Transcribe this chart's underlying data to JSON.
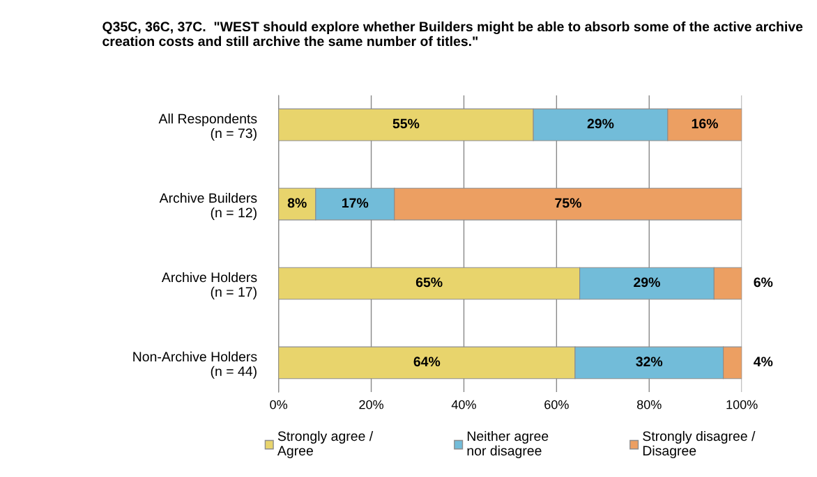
{
  "chart_data": {
    "type": "bar",
    "orientation": "horizontal",
    "stacked": true,
    "title": "Q35C, 36C, 37C.  \"WEST should explore whether Builders might be able to absorb some of the active archive creation costs and still archive the same number of titles.\"",
    "categories": [
      "All Respondents\n(n = 73)",
      "Archive Builders\n(n = 12)",
      "Archive Holders\n(n = 17)",
      "Non-Archive Holders\n(n = 44)"
    ],
    "series": [
      {
        "name": "Strongly agree /\nAgree",
        "color": "#e8d46c",
        "values": [
          55,
          8,
          65,
          64
        ],
        "value_labels": [
          "55%",
          "8%",
          "65%",
          "64%"
        ]
      },
      {
        "name": "Neither agree\nnor disagree",
        "color": "#72bcd9",
        "values": [
          29,
          17,
          29,
          32
        ],
        "value_labels": [
          "29%",
          "17%",
          "29%",
          "32%"
        ]
      },
      {
        "name": "Strongly disagree /\nDisagree",
        "color": "#ec9f62",
        "values": [
          16,
          75,
          6,
          4
        ],
        "value_labels": [
          "16%",
          "75%",
          "6%",
          "4%"
        ]
      }
    ],
    "xlim": [
      0,
      100
    ],
    "xticks": [
      {
        "value": 0,
        "label": "0%"
      },
      {
        "value": 20,
        "label": "20%"
      },
      {
        "value": 40,
        "label": "40%"
      },
      {
        "value": 60,
        "label": "60%"
      },
      {
        "value": 80,
        "label": "80%"
      },
      {
        "value": 100,
        "label": "100%"
      }
    ],
    "grid": "x",
    "legend": "bottom"
  }
}
